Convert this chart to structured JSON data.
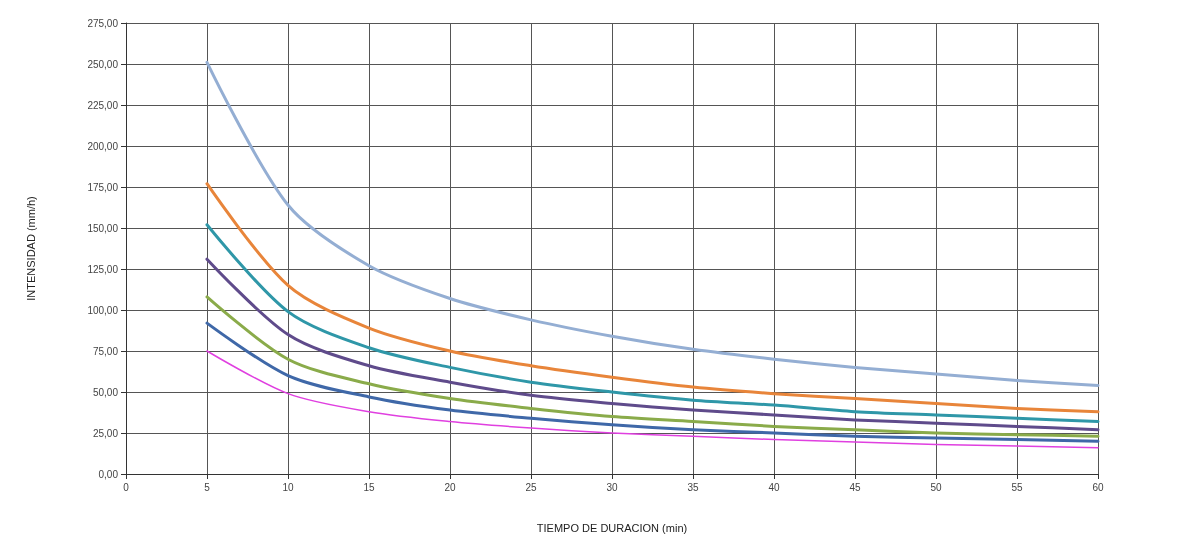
{
  "chart_data": {
    "type": "line",
    "xlabel": "TIEMPO DE DURACION (min)",
    "ylabel": "INTENSIDAD (mm/h)",
    "x": [
      5,
      10,
      15,
      20,
      25,
      30,
      35,
      40,
      45,
      50,
      55,
      60
    ],
    "series": [
      {
        "color": "#94aed3",
        "values": [
          251,
          164,
          127,
          107,
          94,
          84,
          76,
          70,
          65,
          61,
          57,
          54
        ]
      },
      {
        "color": "#e8853a",
        "values": [
          177,
          115,
          89,
          75,
          66,
          59,
          53,
          49,
          46,
          43,
          40,
          38
        ]
      },
      {
        "color": "#2f97a8",
        "values": [
          152,
          99,
          77,
          65,
          56,
          50,
          45,
          42,
          38,
          36,
          34,
          32
        ]
      },
      {
        "color": "#5f4b8b",
        "values": [
          131,
          85,
          66,
          56,
          48,
          43,
          39,
          36,
          33,
          31,
          29,
          27
        ]
      },
      {
        "color": "#8aab4a",
        "values": [
          108,
          70,
          55,
          46,
          40,
          35,
          32,
          29,
          27,
          25,
          24,
          23
        ]
      },
      {
        "color": "#3f68a8",
        "values": [
          92,
          60,
          47,
          39,
          34,
          30,
          27,
          25,
          23,
          22,
          21,
          20
        ]
      },
      {
        "color": "#e040e0",
        "values": [
          75,
          49,
          38,
          32,
          28,
          25,
          23,
          21,
          19.5,
          18,
          17,
          16
        ]
      }
    ],
    "xlim": [
      0,
      60
    ],
    "xticks": [
      0,
      5,
      10,
      15,
      20,
      25,
      30,
      35,
      40,
      45,
      50,
      55,
      60
    ],
    "ylim": [
      0,
      275
    ],
    "yticks": [
      {
        "value": 0,
        "label": "0,00"
      },
      {
        "value": 25,
        "label": "25,00"
      },
      {
        "value": 50,
        "label": "50,00"
      },
      {
        "value": 75,
        "label": "75,00"
      },
      {
        "value": 100,
        "label": "100,00"
      },
      {
        "value": 125,
        "label": "125,00"
      },
      {
        "value": 150,
        "label": "150,00"
      },
      {
        "value": 175,
        "label": "175,00"
      },
      {
        "value": 200,
        "label": "200,00"
      },
      {
        "value": 225,
        "label": "225,00"
      },
      {
        "value": 250,
        "label": "250,00"
      },
      {
        "value": 275,
        "label": "275,00"
      }
    ],
    "grid": true,
    "marker": "none",
    "line_style": "solid"
  }
}
